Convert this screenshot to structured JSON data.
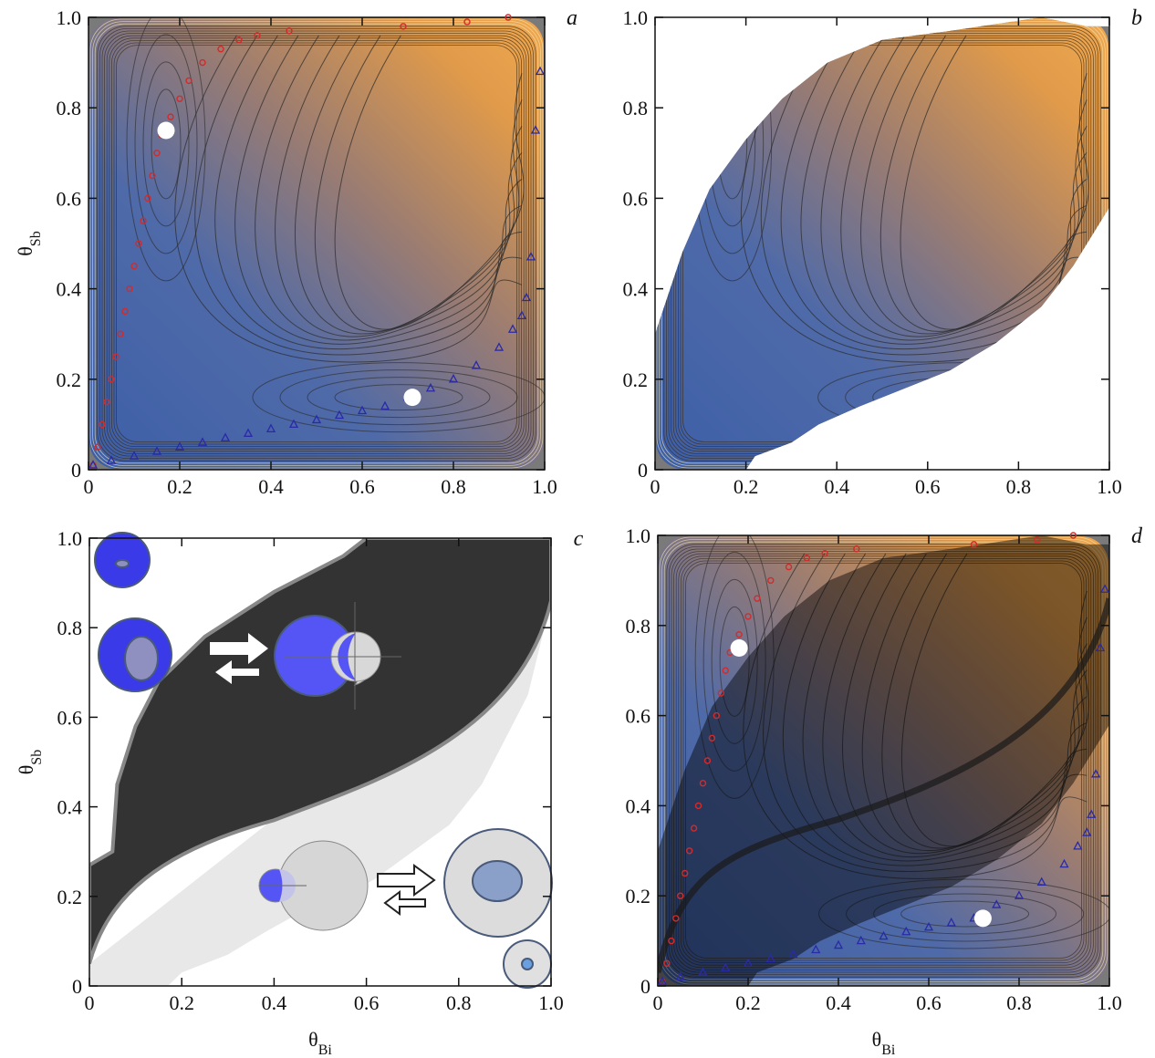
{
  "chart_data": [
    {
      "type": "contour",
      "label": "a",
      "xlim": [
        0,
        1
      ],
      "ylim": [
        0,
        1
      ],
      "xticks": [
        0,
        0.2,
        0.4,
        0.6,
        0.8,
        {
          "value": 1,
          "label": "1.0"
        }
      ],
      "yticks": [
        0,
        0.2,
        0.4,
        0.6,
        0.8,
        {
          "value": 1,
          "label": "1.0"
        }
      ],
      "ylabel": {
        "symbol": "θ",
        "subscript": "Sb"
      },
      "series": [
        {
          "marker": "circle",
          "color": "#d42a2a",
          "x": [
            0.01,
            0.02,
            0.03,
            0.04,
            0.05,
            0.06,
            0.07,
            0.08,
            0.09,
            0.1,
            0.11,
            0.12,
            0.13,
            0.14,
            0.15,
            0.16,
            0.18,
            0.2,
            0.22,
            0.25,
            0.29,
            0.33,
            0.37,
            0.44,
            0.69,
            0.83,
            0.92
          ],
          "y": [
            0.01,
            0.05,
            0.1,
            0.15,
            0.2,
            0.25,
            0.3,
            0.35,
            0.4,
            0.45,
            0.5,
            0.55,
            0.6,
            0.65,
            0.7,
            0.74,
            0.78,
            0.82,
            0.86,
            0.9,
            0.93,
            0.95,
            0.96,
            0.97,
            0.98,
            0.99,
            1.0
          ]
        },
        {
          "marker": "triangle",
          "color": "#2a2aa8",
          "x": [
            0.01,
            0.05,
            0.1,
            0.15,
            0.2,
            0.25,
            0.3,
            0.35,
            0.4,
            0.45,
            0.5,
            0.55,
            0.6,
            0.65,
            0.7,
            0.75,
            0.8,
            0.85,
            0.9,
            0.93,
            0.95,
            0.96,
            0.97,
            0.98,
            0.99
          ],
          "y": [
            0.01,
            0.02,
            0.03,
            0.04,
            0.05,
            0.06,
            0.07,
            0.08,
            0.09,
            0.1,
            0.11,
            0.12,
            0.13,
            0.14,
            0.16,
            0.18,
            0.2,
            0.23,
            0.27,
            0.31,
            0.34,
            0.38,
            0.47,
            0.75,
            0.88
          ]
        },
        {
          "marker": "dot",
          "color": "#ffffff",
          "x": [
            0.17,
            0.71
          ],
          "y": [
            0.75,
            0.16
          ]
        }
      ]
    },
    {
      "type": "contour",
      "label": "b",
      "xlim": [
        0,
        1
      ],
      "ylim": [
        0,
        1
      ],
      "xticks": [
        0,
        0.2,
        0.4,
        0.6,
        0.8,
        {
          "value": 1,
          "label": "1.0"
        }
      ],
      "yticks": [
        0,
        0.2,
        0.4,
        0.6,
        0.8,
        {
          "value": 1,
          "label": "1.0"
        }
      ]
    },
    {
      "type": "regions",
      "label": "c",
      "xlim": [
        0,
        1
      ],
      "ylim": [
        0,
        1
      ],
      "xticks": [
        0,
        0.2,
        0.4,
        0.6,
        0.8,
        {
          "value": 1,
          "label": "1.0"
        }
      ],
      "yticks": [
        0,
        0.2,
        0.4,
        0.6,
        0.8,
        {
          "value": 1,
          "label": "1.0"
        }
      ],
      "xlabel": {
        "symbol": "θ",
        "subscript": "Bi"
      },
      "ylabel": {
        "symbol": "θ",
        "subscript": "Sb"
      }
    },
    {
      "type": "contour",
      "label": "d",
      "xlim": [
        0,
        1
      ],
      "ylim": [
        0,
        1
      ],
      "xticks": [
        0,
        0.2,
        0.4,
        0.6,
        0.8,
        {
          "value": 1,
          "label": "1.0"
        }
      ],
      "yticks": [
        0,
        0.2,
        0.4,
        0.6,
        0.8,
        {
          "value": 1,
          "label": "1.0"
        }
      ],
      "xlabel": {
        "symbol": "θ",
        "subscript": "Bi"
      },
      "series": [
        {
          "marker": "circle",
          "color": "#d42a2a",
          "x": [
            0.01,
            0.02,
            0.03,
            0.04,
            0.05,
            0.06,
            0.07,
            0.08,
            0.09,
            0.1,
            0.11,
            0.12,
            0.13,
            0.14,
            0.15,
            0.16,
            0.18,
            0.2,
            0.22,
            0.25,
            0.29,
            0.33,
            0.37,
            0.44,
            0.7,
            0.84,
            0.92
          ],
          "y": [
            0.01,
            0.05,
            0.1,
            0.15,
            0.2,
            0.25,
            0.3,
            0.35,
            0.4,
            0.45,
            0.5,
            0.55,
            0.6,
            0.65,
            0.7,
            0.74,
            0.78,
            0.82,
            0.86,
            0.9,
            0.93,
            0.95,
            0.96,
            0.97,
            0.98,
            0.99,
            1.0
          ]
        },
        {
          "marker": "triangle",
          "color": "#2a2aa8",
          "x": [
            0.01,
            0.05,
            0.1,
            0.15,
            0.2,
            0.25,
            0.3,
            0.35,
            0.4,
            0.45,
            0.5,
            0.55,
            0.6,
            0.65,
            0.7,
            0.75,
            0.8,
            0.85,
            0.9,
            0.93,
            0.95,
            0.96,
            0.97,
            0.98,
            0.99
          ],
          "y": [
            0.01,
            0.02,
            0.03,
            0.04,
            0.05,
            0.06,
            0.07,
            0.08,
            0.09,
            0.1,
            0.11,
            0.12,
            0.13,
            0.14,
            0.15,
            0.18,
            0.2,
            0.23,
            0.27,
            0.31,
            0.34,
            0.38,
            0.47,
            0.75,
            0.88
          ]
        },
        {
          "marker": "dot",
          "color": "#ffffff",
          "x": [
            0.18,
            0.72
          ],
          "y": [
            0.75,
            0.15
          ]
        }
      ]
    }
  ]
}
